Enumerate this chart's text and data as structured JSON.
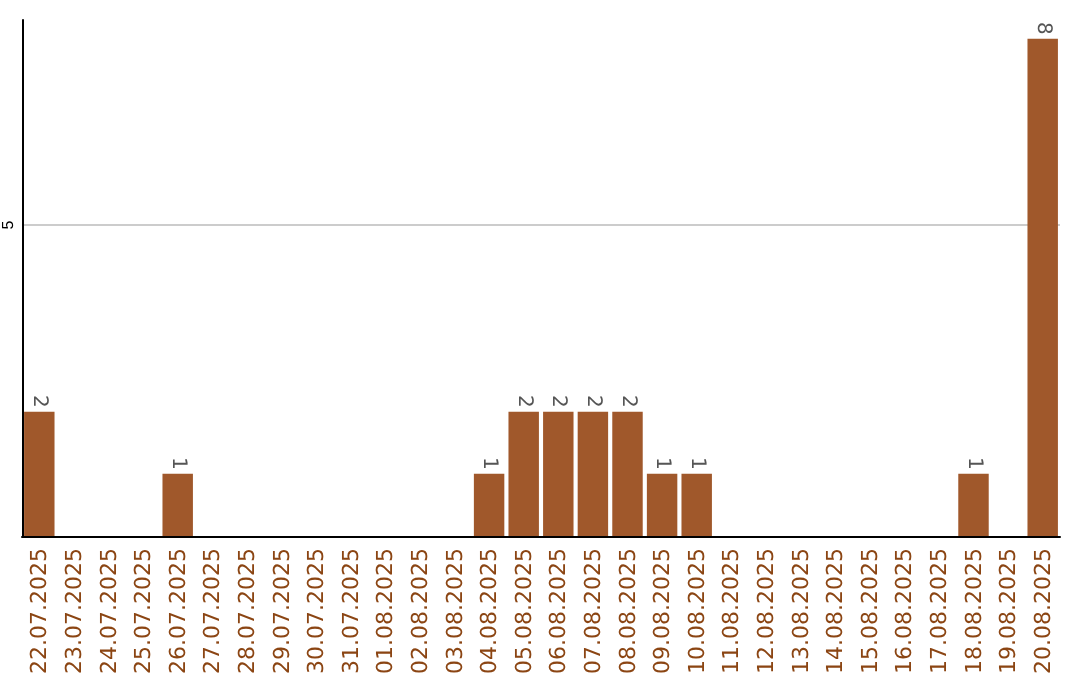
{
  "chart_data": {
    "type": "bar",
    "categories": [
      "22.07.2025",
      "23.07.2025",
      "24.07.2025",
      "25.07.2025",
      "26.07.2025",
      "27.07.2025",
      "28.07.2025",
      "29.07.2025",
      "30.07.2025",
      "31.07.2025",
      "01.08.2025",
      "02.08.2025",
      "03.08.2025",
      "04.08.2025",
      "05.08.2025",
      "06.08.2025",
      "07.08.2025",
      "08.08.2025",
      "09.08.2025",
      "10.08.2025",
      "11.08.2025",
      "12.08.2025",
      "13.08.2025",
      "14.08.2025",
      "15.08.2025",
      "16.08.2025",
      "17.08.2025",
      "18.08.2025",
      "19.08.2025",
      "20.08.2025"
    ],
    "values": [
      2,
      0,
      0,
      0,
      1,
      0,
      0,
      0,
      0,
      0,
      0,
      0,
      0,
      1,
      2,
      2,
      2,
      2,
      1,
      1,
      0,
      0,
      0,
      0,
      0,
      0,
      0,
      1,
      0,
      8
    ],
    "value_labels": [
      "2",
      null,
      null,
      null,
      "1",
      null,
      null,
      null,
      null,
      null,
      null,
      null,
      null,
      "1",
      "2",
      "2",
      "2",
      "2",
      "1",
      "1",
      null,
      null,
      null,
      null,
      null,
      null,
      null,
      "1",
      null,
      "8"
    ],
    "color": "#a0582b",
    "ylim": [
      0,
      8.3
    ],
    "yticks": [
      5
    ],
    "grid": "y"
  }
}
